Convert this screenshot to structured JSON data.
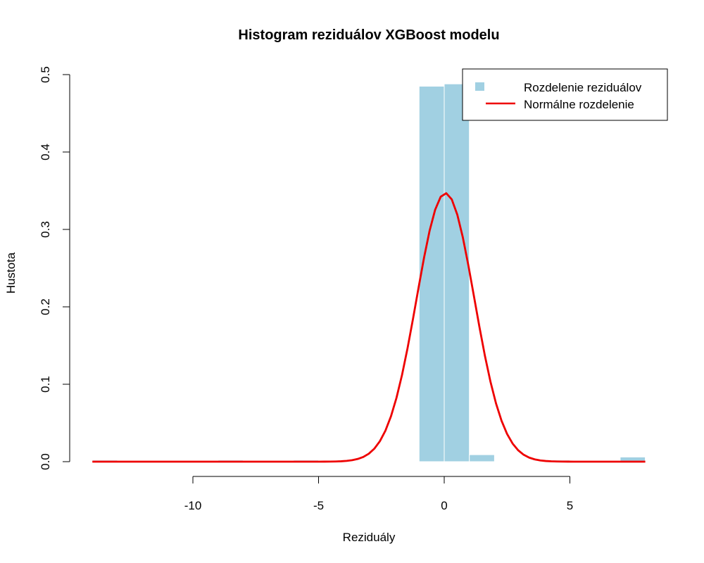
{
  "chart_data": {
    "type": "histogram",
    "title": "Histogram reziduálov XGBoost modelu",
    "xlabel": "Reziduály",
    "ylabel": "Hustota",
    "xlim": [
      -14,
      8
    ],
    "ylim": [
      0,
      0.5
    ],
    "xticks": [
      -10,
      -5,
      0,
      5
    ],
    "yticks": [
      0,
      0.1,
      0.2,
      0.3,
      0.4,
      0.5
    ],
    "grid": false,
    "legend_position": "top-right",
    "colors": {
      "bars": "#A1D0E2",
      "bar_border": "#ffffff",
      "curve": "#EE0000"
    },
    "series": [
      {
        "name": "Rozdelenie reziduálov",
        "kind": "bars",
        "bins": [
          {
            "x0": -14,
            "x1": -13,
            "density": 0.002
          },
          {
            "x0": -9,
            "x1": -8,
            "density": 0.002
          },
          {
            "x0": -6,
            "x1": -5,
            "density": 0.002
          },
          {
            "x0": -1,
            "x1": 0,
            "density": 0.485
          },
          {
            "x0": 0,
            "x1": 1,
            "density": 0.488
          },
          {
            "x0": 1,
            "x1": 2,
            "density": 0.009
          },
          {
            "x0": 4,
            "x1": 5,
            "density": 0.002
          },
          {
            "x0": 7,
            "x1": 8,
            "density": 0.006
          }
        ]
      },
      {
        "name": "Normálne rozdelenie",
        "kind": "curve",
        "mean": 0.05,
        "sd": 1.15,
        "x_range": [
          -14,
          8
        ]
      }
    ]
  }
}
